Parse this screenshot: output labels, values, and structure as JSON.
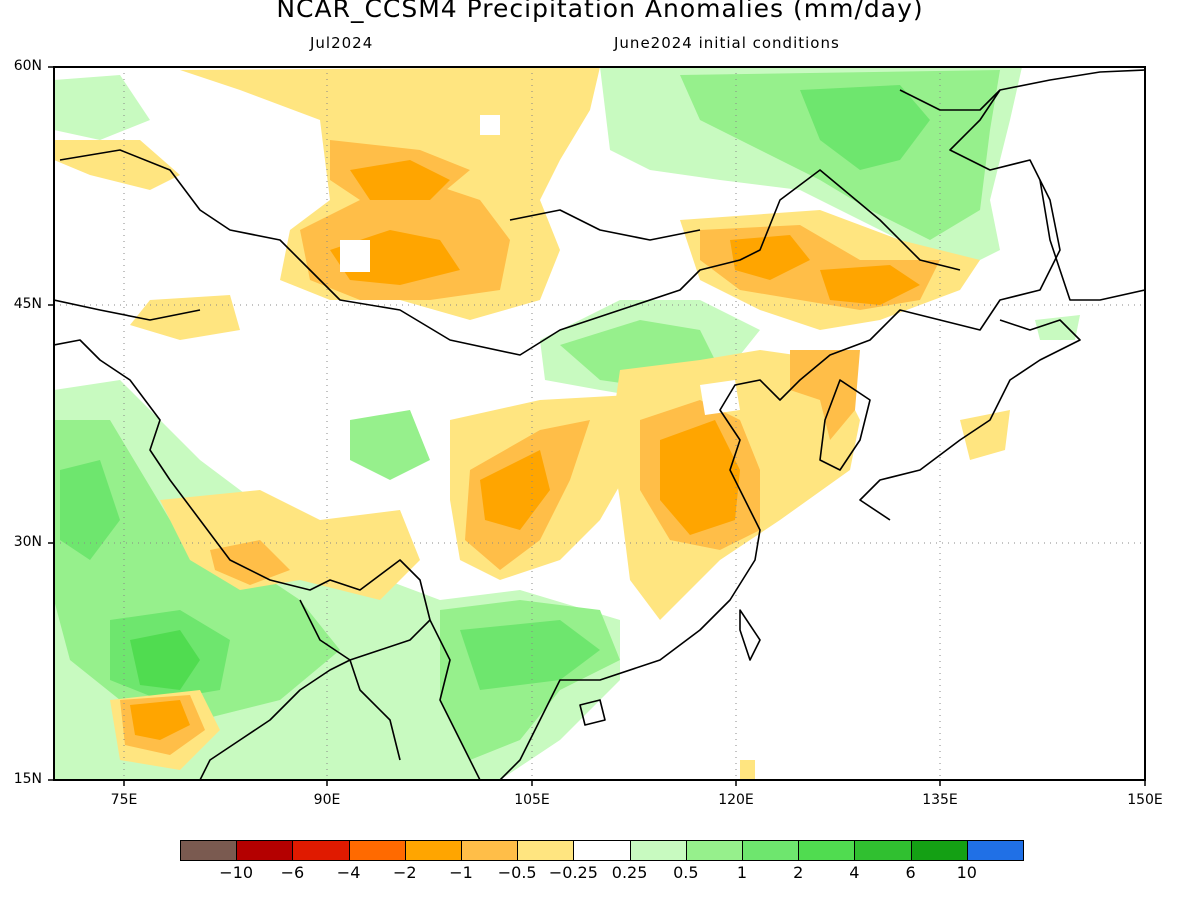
{
  "title": "NCAR_CCSM4 Precipitation Anomalies (mm/day)",
  "subtitle_left": "Jul2024",
  "subtitle_right": "June2024 initial conditions",
  "lat_labels": [
    "60N",
    "45N",
    "30N",
    "15N"
  ],
  "lon_labels": [
    "75E",
    "90E",
    "105E",
    "120E",
    "135E",
    "150E"
  ],
  "colorbar": {
    "colors": [
      "#7a5a50",
      "#b40000",
      "#e01a00",
      "#ff6a00",
      "#ffa500",
      "#ffbe48",
      "#ffe580",
      "#ffffff",
      "#c8fac0",
      "#96f08c",
      "#6ee66e",
      "#50dc50",
      "#30c030",
      "#14a014",
      "#2070e6"
    ],
    "labels": [
      "-10",
      "-6",
      "-4",
      "-2",
      "-1",
      "-0.5",
      "-0.25",
      "0.25",
      "0.5",
      "1",
      "2",
      "4",
      "6",
      "10"
    ]
  }
}
